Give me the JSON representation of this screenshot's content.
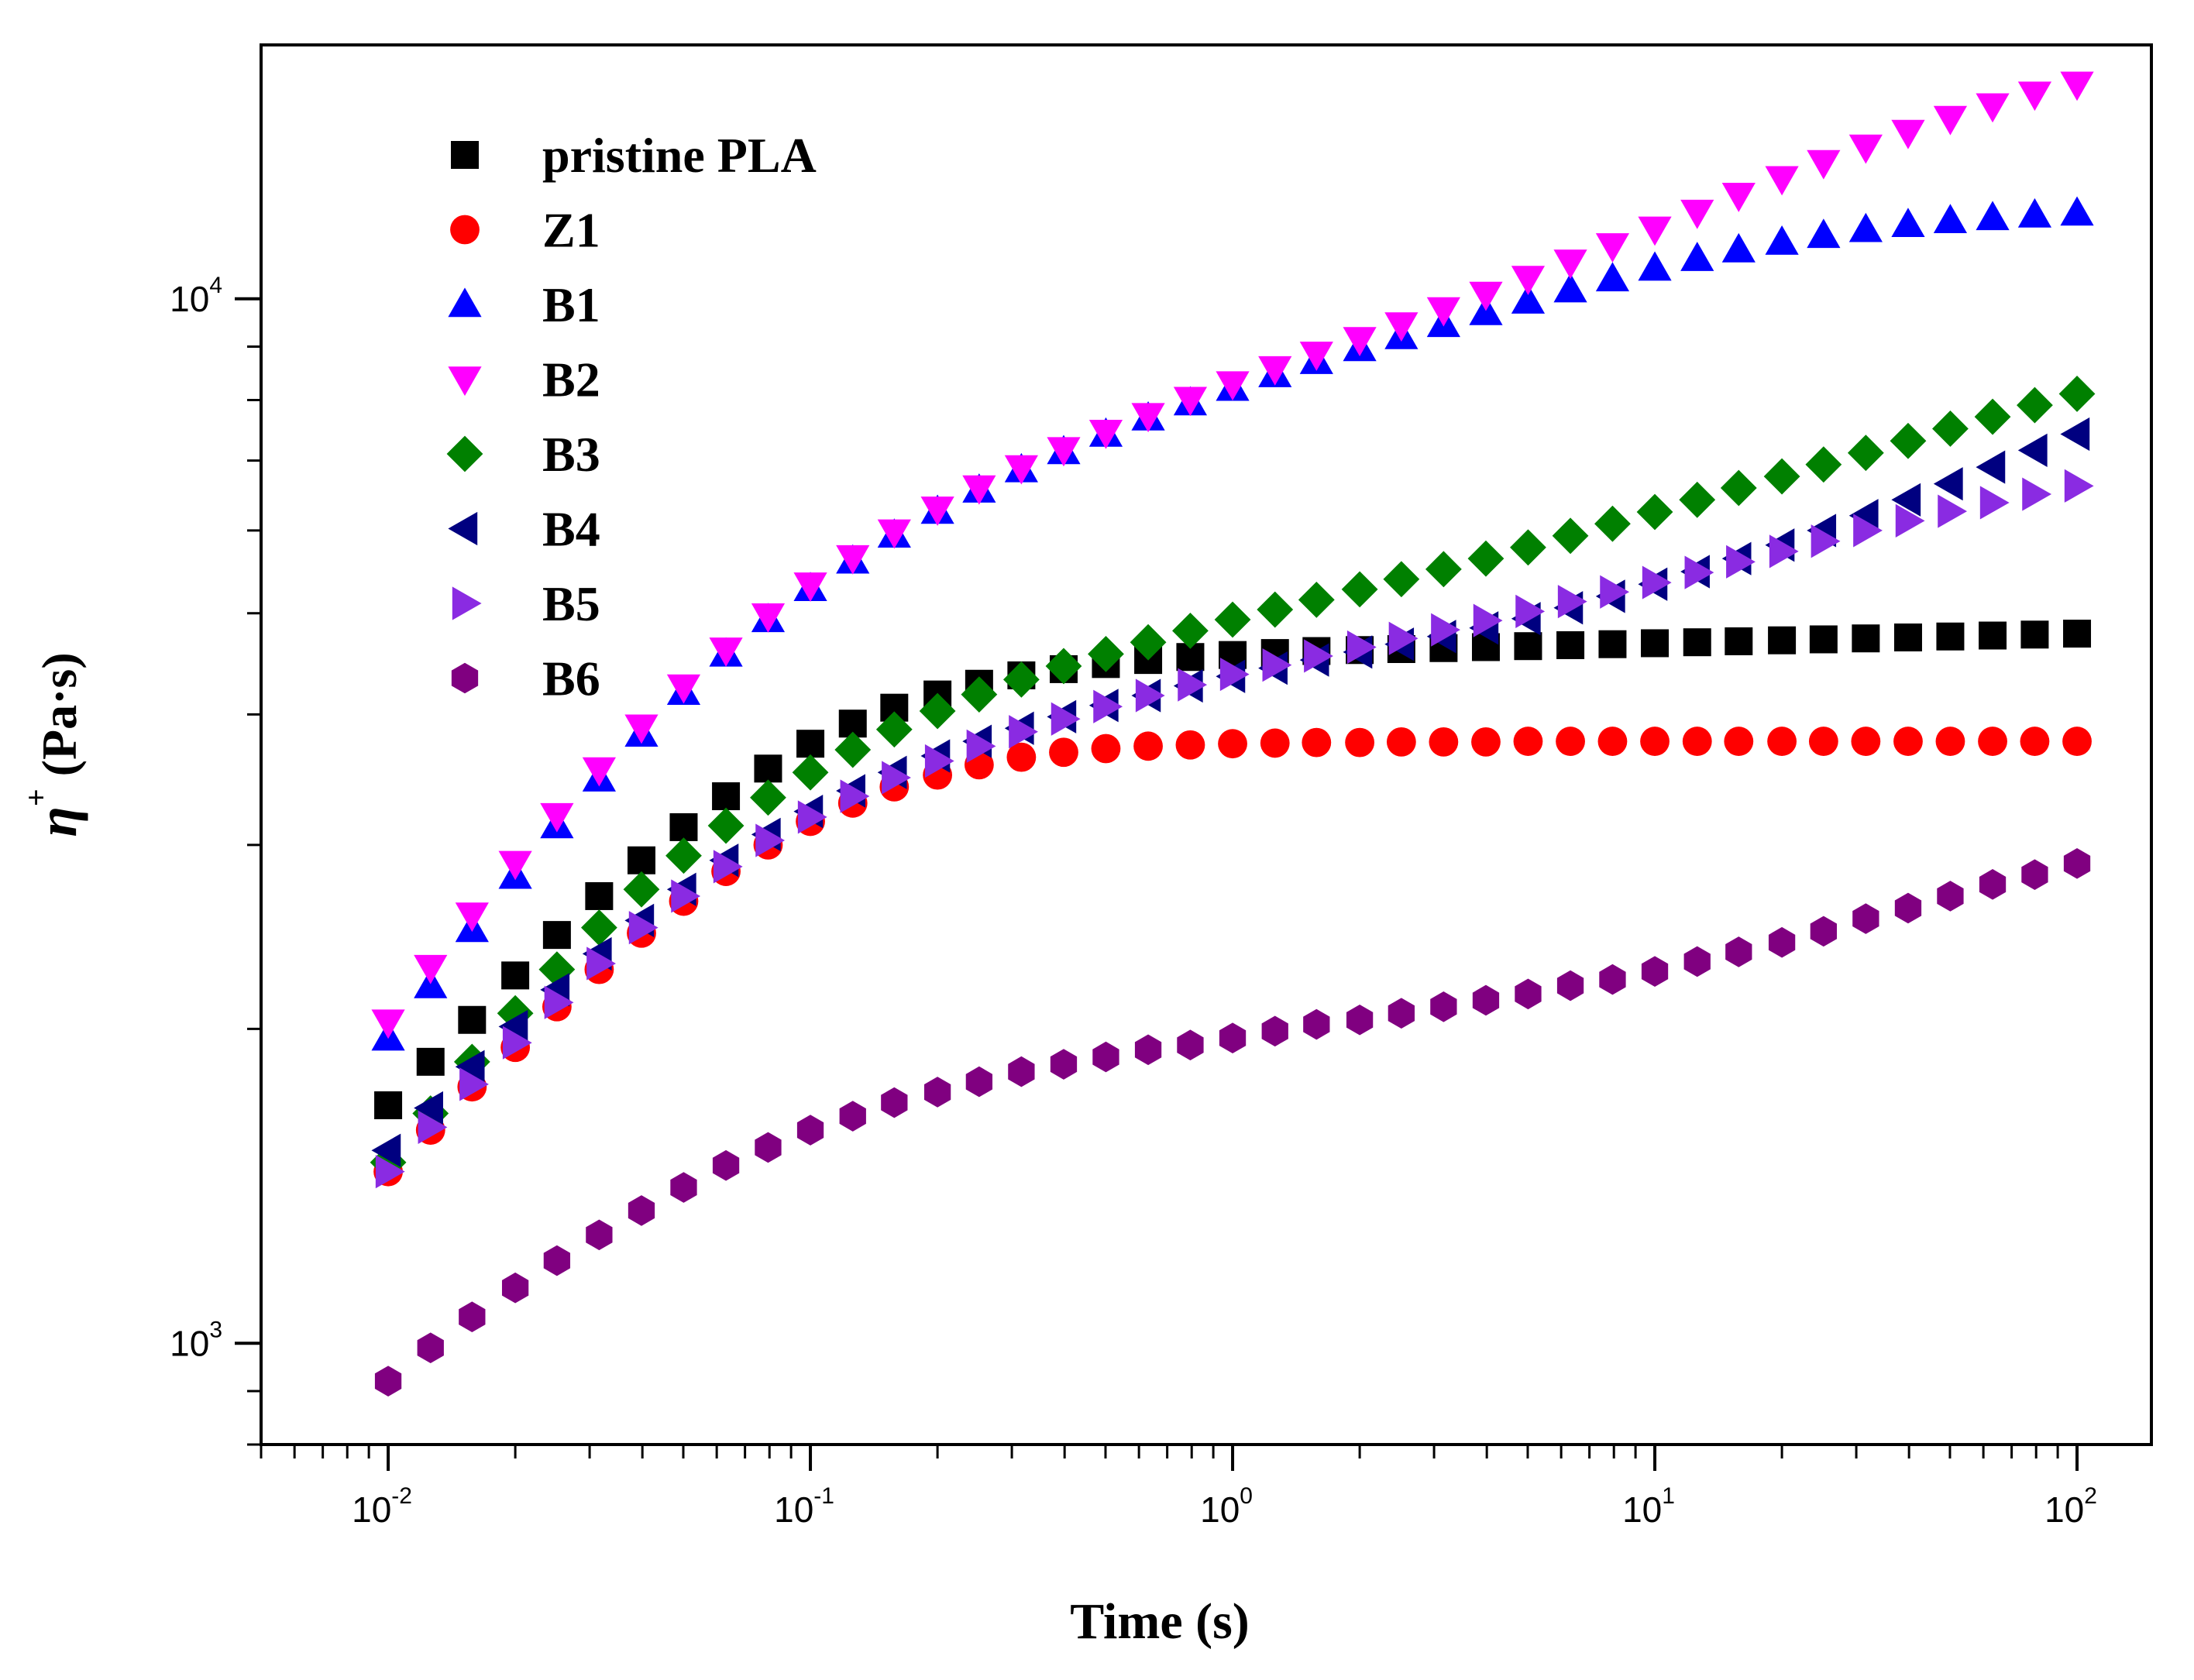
{
  "chart_data": {
    "type": "scatter",
    "xscale": "log",
    "yscale": "log",
    "xlim": [
      0.005,
      150
    ],
    "ylim": [
      800,
      17500
    ],
    "xlabel": "Time (s)",
    "ylabel": {
      "symbol": "η",
      "sup": "+",
      "unit": " (Pa·s)"
    },
    "x_ticks": [
      {
        "base": "10",
        "exp": "-2"
      },
      {
        "base": "10",
        "exp": "-1"
      },
      {
        "base": "10",
        "exp": "0"
      },
      {
        "base": "10",
        "exp": "1"
      },
      {
        "base": "10",
        "exp": "2"
      }
    ],
    "y_ticks": [
      {
        "base": "10",
        "exp": "3"
      },
      {
        "base": "10",
        "exp": "4"
      }
    ],
    "legend_position": "top-left",
    "x": [
      0.01,
      0.0126,
      0.0158,
      0.02,
      0.0251,
      0.0316,
      0.0398,
      0.0501,
      0.0631,
      0.0794,
      0.1,
      0.126,
      0.158,
      0.2,
      0.251,
      0.316,
      0.398,
      0.501,
      0.631,
      0.794,
      1,
      1.26,
      1.58,
      2,
      2.51,
      3.16,
      3.98,
      5.01,
      6.31,
      7.94,
      10,
      12.6,
      15.8,
      20,
      25.1,
      31.6,
      39.8,
      50.1,
      63.1,
      79.4,
      100
    ],
    "series": [
      {
        "name": "pristine PLA",
        "marker": "square",
        "color": "#000000",
        "values": [
          1690,
          1860,
          2040,
          2250,
          2460,
          2680,
          2900,
          3120,
          3340,
          3550,
          3750,
          3920,
          4060,
          4180,
          4280,
          4360,
          4420,
          4470,
          4510,
          4540,
          4560,
          4580,
          4600,
          4610,
          4620,
          4630,
          4640,
          4650,
          4660,
          4670,
          4680,
          4690,
          4700,
          4710,
          4720,
          4730,
          4740,
          4750,
          4760,
          4770,
          4780
        ]
      },
      {
        "name": "Z1",
        "marker": "circle",
        "color": "#ff0000",
        "values": [
          1460,
          1600,
          1760,
          1920,
          2100,
          2280,
          2470,
          2650,
          2830,
          3000,
          3160,
          3290,
          3410,
          3500,
          3580,
          3640,
          3680,
          3710,
          3730,
          3740,
          3750,
          3755,
          3760,
          3760,
          3765,
          3765,
          3765,
          3770,
          3770,
          3770,
          3770,
          3770,
          3770,
          3770,
          3770,
          3770,
          3770,
          3770,
          3770,
          3770,
          3770
        ]
      },
      {
        "name": "B1",
        "marker": "triangle-up",
        "color": "#0000ff",
        "values": [
          1960,
          2200,
          2490,
          2800,
          3130,
          3470,
          3830,
          4200,
          4570,
          4930,
          5280,
          5610,
          5940,
          6260,
          6560,
          6860,
          7140,
          7420,
          7690,
          7950,
          8210,
          8460,
          8710,
          8960,
          9200,
          9450,
          9700,
          9950,
          10200,
          10450,
          10700,
          10930,
          11140,
          11330,
          11500,
          11650,
          11780,
          11880,
          11960,
          12030,
          12080
        ]
      },
      {
        "name": "B2",
        "marker": "triangle-down",
        "color": "#ff00ff",
        "values": [
          2030,
          2290,
          2570,
          2880,
          3200,
          3540,
          3890,
          4250,
          4610,
          4970,
          5320,
          5650,
          5980,
          6290,
          6590,
          6890,
          7170,
          7450,
          7730,
          8010,
          8290,
          8570,
          8850,
          9140,
          9440,
          9760,
          10100,
          10460,
          10840,
          11240,
          11660,
          12100,
          12560,
          13030,
          13500,
          13970,
          14430,
          14880,
          15300,
          15700,
          16050
        ]
      },
      {
        "name": "B3",
        "marker": "diamond",
        "color": "#008000",
        "values": [
          1490,
          1660,
          1860,
          2070,
          2280,
          2500,
          2720,
          2930,
          3130,
          3330,
          3520,
          3700,
          3870,
          4030,
          4180,
          4320,
          4450,
          4570,
          4690,
          4810,
          4930,
          5040,
          5150,
          5270,
          5390,
          5510,
          5640,
          5780,
          5930,
          6090,
          6250,
          6420,
          6590,
          6760,
          6940,
          7120,
          7310,
          7510,
          7710,
          7910,
          8110
        ]
      },
      {
        "name": "B4",
        "marker": "triangle-left",
        "color": "#000080",
        "values": [
          1530,
          1680,
          1840,
          2010,
          2180,
          2360,
          2540,
          2720,
          2900,
          3070,
          3230,
          3380,
          3520,
          3650,
          3770,
          3880,
          3980,
          4080,
          4170,
          4260,
          4350,
          4430,
          4510,
          4590,
          4670,
          4750,
          4840,
          4940,
          5060,
          5190,
          5330,
          5480,
          5640,
          5810,
          6000,
          6200,
          6420,
          6650,
          6900,
          7160,
          7420
        ]
      },
      {
        "name": "B5",
        "marker": "triangle-right",
        "color": "#8a2be2",
        "values": [
          1460,
          1610,
          1770,
          1940,
          2120,
          2310,
          2500,
          2680,
          2860,
          3030,
          3190,
          3340,
          3480,
          3610,
          3730,
          3850,
          3960,
          4070,
          4170,
          4270,
          4370,
          4460,
          4550,
          4640,
          4730,
          4820,
          4920,
          5020,
          5130,
          5240,
          5350,
          5470,
          5600,
          5730,
          5860,
          6000,
          6130,
          6260,
          6380,
          6500,
          6620
        ]
      },
      {
        "name": "B6",
        "marker": "hexagon",
        "color": "#800080",
        "values": [
          920,
          990,
          1060,
          1130,
          1200,
          1270,
          1340,
          1410,
          1480,
          1540,
          1600,
          1650,
          1700,
          1740,
          1780,
          1820,
          1850,
          1880,
          1910,
          1930,
          1960,
          1990,
          2020,
          2040,
          2070,
          2100,
          2130,
          2160,
          2200,
          2230,
          2270,
          2320,
          2370,
          2420,
          2480,
          2550,
          2610,
          2680,
          2750,
          2810,
          2880
        ]
      }
    ]
  }
}
